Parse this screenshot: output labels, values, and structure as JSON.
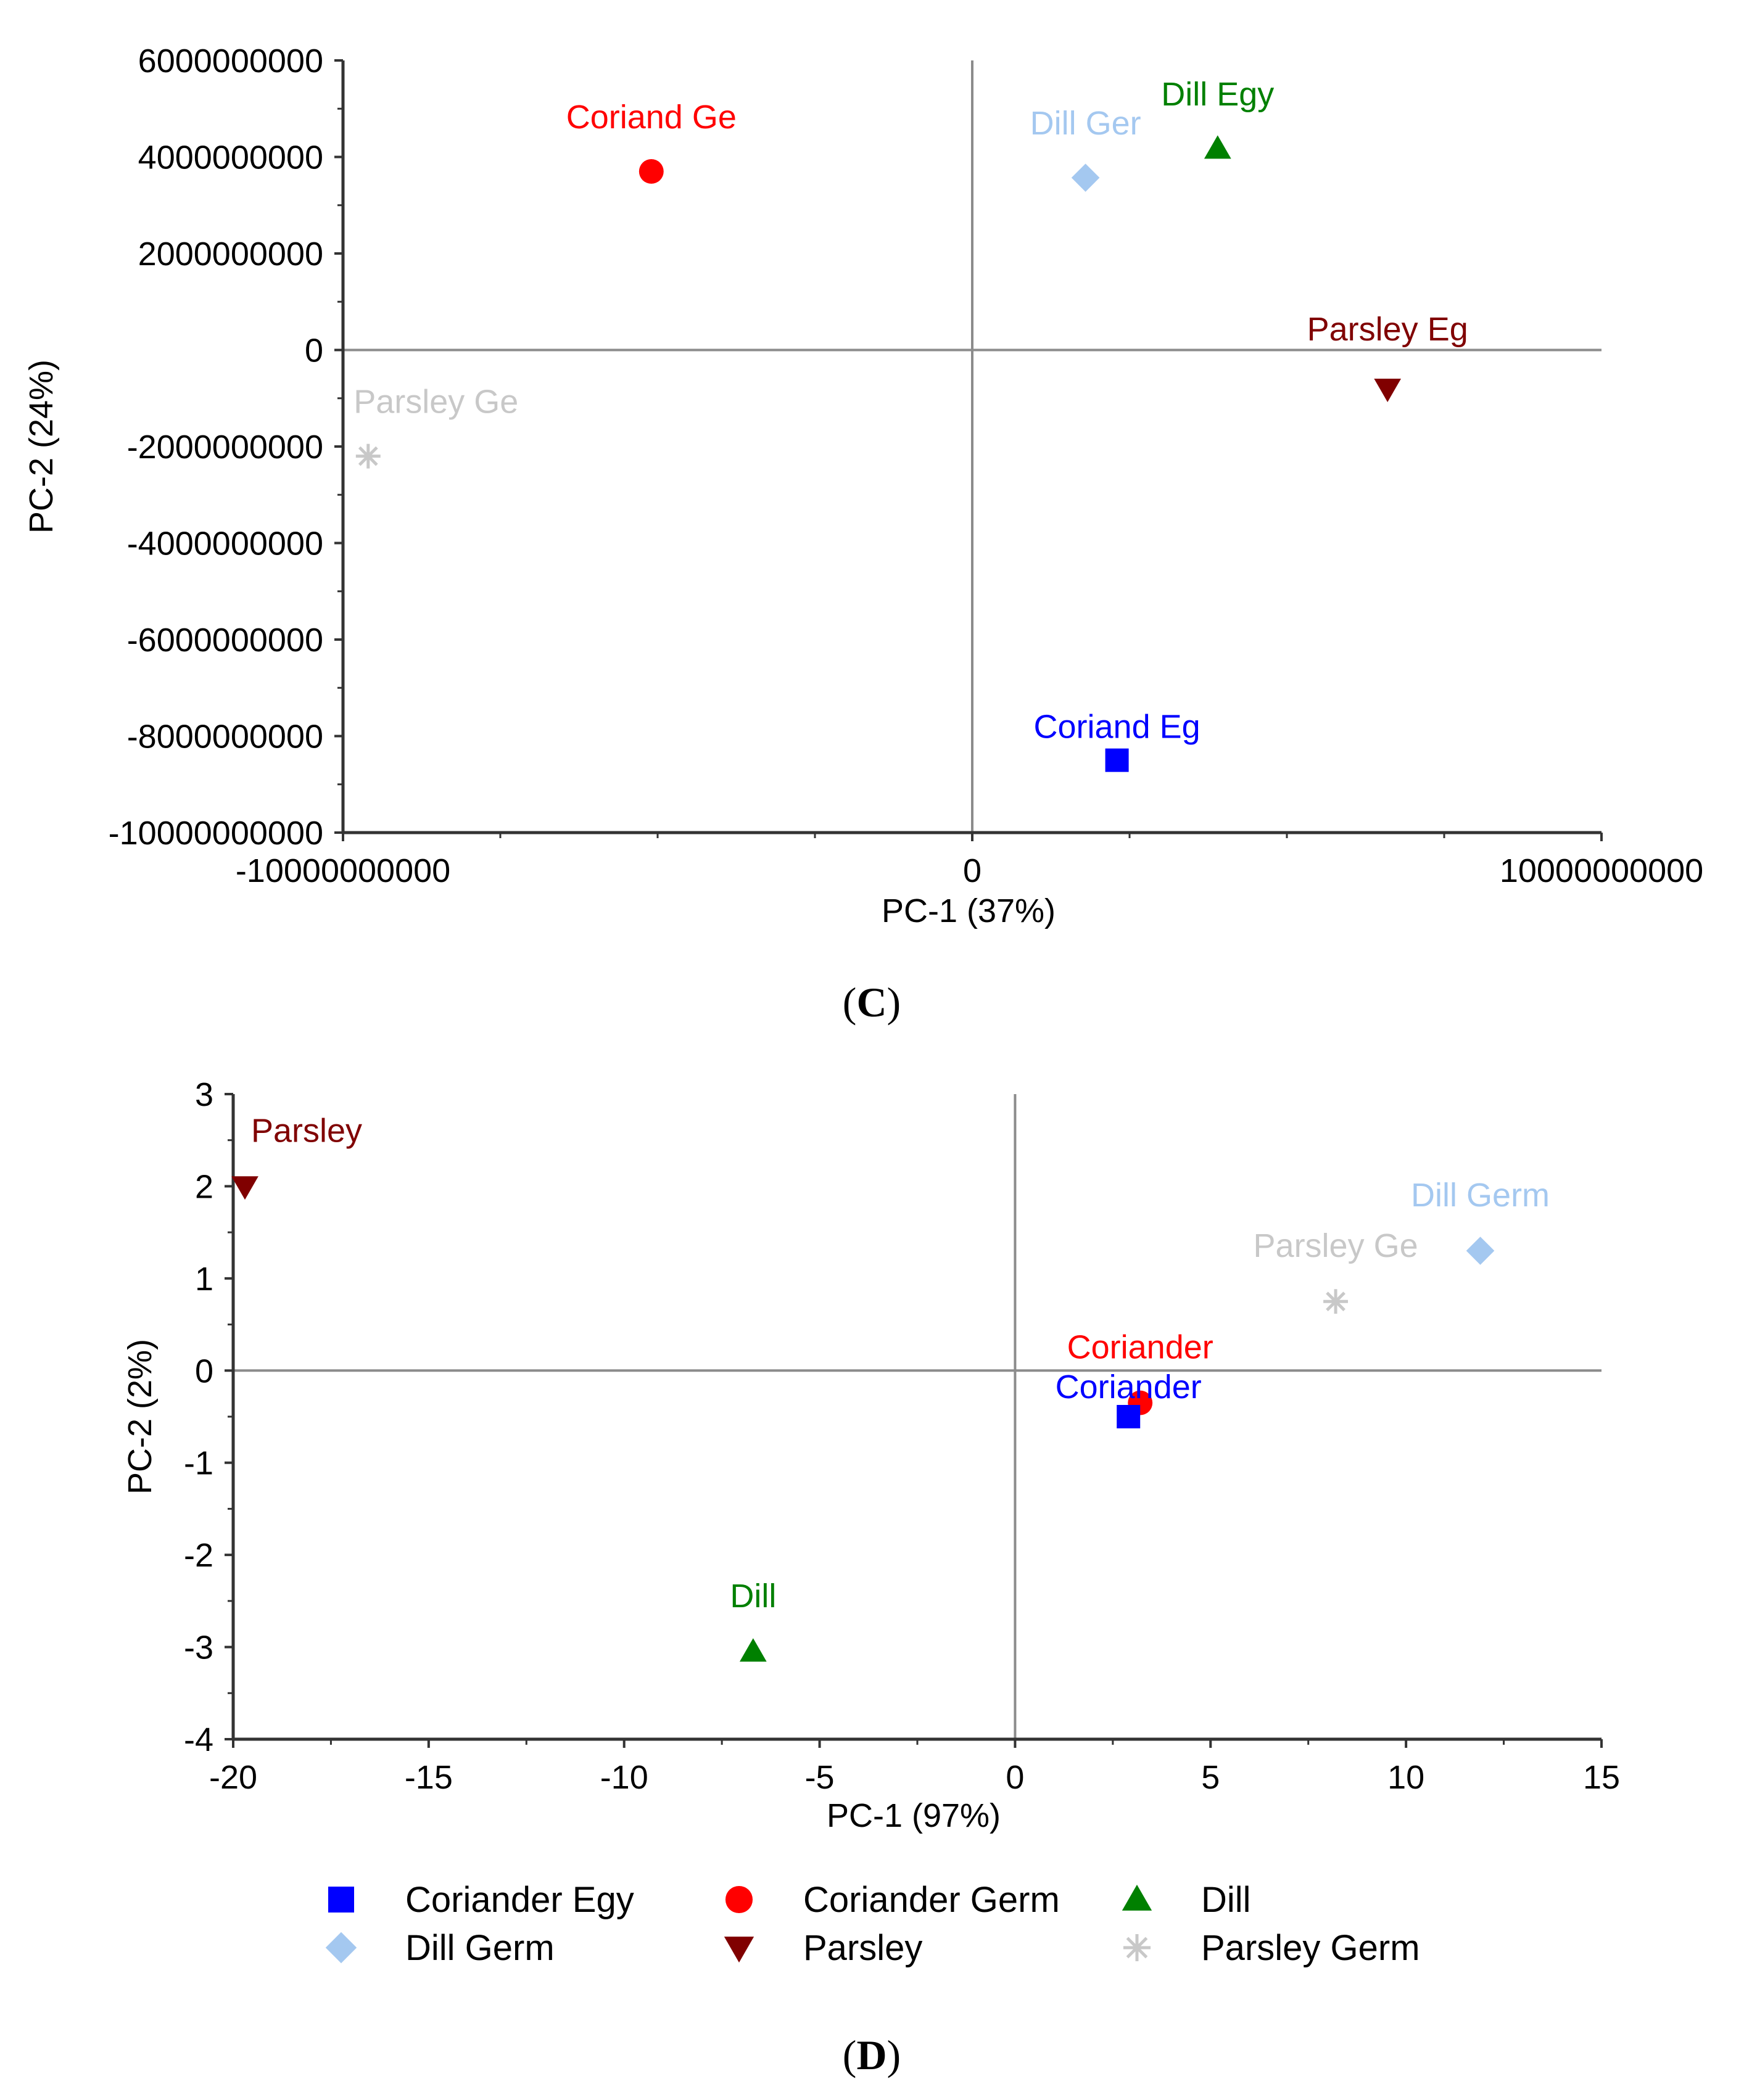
{
  "chart_data": [
    {
      "panel": "C",
      "type": "scatter",
      "xlabel": "PC-1 (37%)",
      "ylabel": "PC-2 (24%)",
      "xlim": [
        -10000000000,
        10000000000
      ],
      "ylim": [
        -10000000000,
        6000000000
      ],
      "xticks": [
        -10000000000,
        0,
        10000000000
      ],
      "xtick_labels": [
        "-10000000000",
        "0",
        "10000000000"
      ],
      "yticks": [
        6000000000,
        4000000000,
        2000000000,
        0,
        -2000000000,
        -4000000000,
        -6000000000,
        -8000000000,
        -10000000000
      ],
      "ytick_labels": [
        "6000000000",
        "4000000000",
        "2000000000",
        "0",
        "-2000000000",
        "-4000000000",
        "-6000000000",
        "-8000000000",
        "-10000000000"
      ],
      "points": [
        {
          "label": "Coriand Ge",
          "series": "Coriander Germ",
          "x": -5100000000,
          "y": 3700000000
        },
        {
          "label": "Dill Ger",
          "series": "Dill Germ",
          "x": 1800000000,
          "y": 3570000000
        },
        {
          "label": "Dill Egy",
          "series": "Dill",
          "x": 3900000000,
          "y": 4170000000
        },
        {
          "label": "Parsley Eg",
          "series": "Parsley",
          "x": 6600000000,
          "y": -800000000
        },
        {
          "label": "Parsley Ge",
          "series": "Parsley Germ",
          "x": -9600000000,
          "y": -2200000000
        },
        {
          "label": "Coriand Eg",
          "series": "Coriander Egy",
          "x": 2300000000,
          "y": -8500000000
        }
      ]
    },
    {
      "panel": "D",
      "type": "scatter",
      "xlabel": "PC-1 (97%)",
      "ylabel": "PC-2 (2%)",
      "xlim": [
        -20,
        15
      ],
      "ylim": [
        -4,
        3
      ],
      "xticks": [
        -20,
        -15,
        -10,
        -5,
        0,
        5,
        10,
        15
      ],
      "xtick_labels": [
        "-20",
        "-15",
        "-10",
        "-5",
        "0",
        "5",
        "10",
        "15"
      ],
      "yticks": [
        3,
        2,
        1,
        0,
        -1,
        -2,
        -3,
        -4
      ],
      "ytick_labels": [
        "3",
        "2",
        "1",
        "0",
        "-1",
        "-2",
        "-3",
        "-4"
      ],
      "points": [
        {
          "label": "Parsley",
          "series": "Parsley",
          "x": -19.7,
          "y": 2.0
        },
        {
          "label": "Dill Germ",
          "series": "Dill Germ",
          "x": 11.9,
          "y": 1.3
        },
        {
          "label": "Parsley Ge",
          "series": "Parsley Germ",
          "x": 8.2,
          "y": 0.75
        },
        {
          "label": "Coriander",
          "series": "Coriander Germ",
          "x": 3.2,
          "y": -0.35
        },
        {
          "label": "Coriander",
          "series": "Coriander Egy",
          "x": 2.9,
          "y": -0.5
        },
        {
          "label": "Dill",
          "series": "Dill",
          "x": -6.7,
          "y": -3.05
        }
      ]
    }
  ],
  "legend": [
    {
      "name": "Coriander Egy",
      "marker": "square",
      "color": "#0000ff"
    },
    {
      "name": "Coriander Germ",
      "marker": "circle",
      "color": "#ff0000"
    },
    {
      "name": "Dill",
      "marker": "triangle-up",
      "color": "#008000"
    },
    {
      "name": "Dill Germ",
      "marker": "diamond",
      "color": "#a4c8f0"
    },
    {
      "name": "Parsley",
      "marker": "triangle-down",
      "color": "#800000"
    },
    {
      "name": "Parsley Germ",
      "marker": "star",
      "color": "#c8c8c8"
    }
  ],
  "panel_labels": {
    "C": "C",
    "D": "D"
  }
}
